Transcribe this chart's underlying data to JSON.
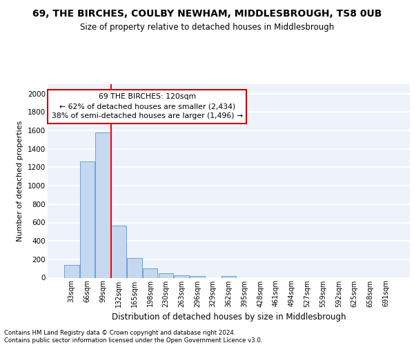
{
  "title": "69, THE BIRCHES, COULBY NEWHAM, MIDDLESBROUGH, TS8 0UB",
  "subtitle": "Size of property relative to detached houses in Middlesbrough",
  "xlabel": "Distribution of detached houses by size in Middlesbrough",
  "ylabel": "Number of detached properties",
  "categories": [
    "33sqm",
    "66sqm",
    "99sqm",
    "132sqm",
    "165sqm",
    "198sqm",
    "230sqm",
    "263sqm",
    "296sqm",
    "329sqm",
    "362sqm",
    "395sqm",
    "428sqm",
    "461sqm",
    "494sqm",
    "527sqm",
    "559sqm",
    "592sqm",
    "625sqm",
    "658sqm",
    "691sqm"
  ],
  "values": [
    140,
    1265,
    1575,
    570,
    215,
    100,
    50,
    28,
    22,
    0,
    20,
    0,
    0,
    0,
    0,
    0,
    0,
    0,
    0,
    0,
    0
  ],
  "bar_color": "#c5d8f0",
  "bar_edge_color": "#6ca0d4",
  "background_color": "#eef2fa",
  "grid_color": "#ffffff",
  "annotation_text": "69 THE BIRCHES: 120sqm\n← 62% of detached houses are smaller (2,434)\n38% of semi-detached houses are larger (1,496) →",
  "annotation_box_color": "#ffffff",
  "annotation_box_edge": "#cc0000",
  "ylim": [
    0,
    2100
  ],
  "yticks": [
    0,
    200,
    400,
    600,
    800,
    1000,
    1200,
    1400,
    1600,
    1800,
    2000
  ],
  "footer_line1": "Contains HM Land Registry data © Crown copyright and database right 2024.",
  "footer_line2": "Contains public sector information licensed under the Open Government Licence v3.0."
}
